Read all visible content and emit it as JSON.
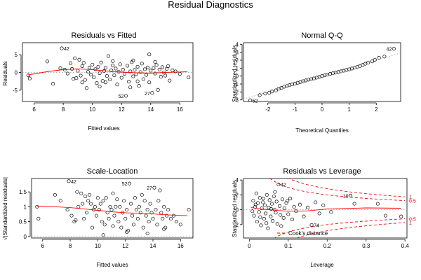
{
  "figure": {
    "title": "Residual Diagnostics"
  },
  "chart_data": [
    {
      "type": "scatter",
      "title": "Residuals vs Fitted",
      "xlabel": "Fitted values",
      "ylabel": "Residuals",
      "xlim": [
        5.2,
        16.9
      ],
      "ylim": [
        -8.2,
        8.4
      ],
      "xticks": [
        6,
        8,
        10,
        12,
        14,
        16
      ],
      "yticks": [
        -5,
        0,
        5
      ],
      "smooth": [
        [
          5.6,
          -0.7
        ],
        [
          7,
          0.3
        ],
        [
          8,
          0.8
        ],
        [
          9,
          1.0
        ],
        [
          10,
          0.8
        ],
        [
          11,
          0.4
        ],
        [
          12,
          0.1
        ],
        [
          13,
          -0.1
        ],
        [
          14,
          -0.2
        ],
        [
          15,
          0.0
        ],
        [
          16.5,
          0.2
        ]
      ],
      "annotations": [
        {
          "label": "42",
          "x": 7.9,
          "y": 6.8
        },
        {
          "label": "52",
          "x": 12.3,
          "y": -6.6
        },
        {
          "label": "27",
          "x": 14.1,
          "y": -5.8
        }
      ],
      "points": [
        [
          5.6,
          -0.8
        ],
        [
          5.7,
          -1.7
        ],
        [
          6.9,
          3.1
        ],
        [
          7.3,
          -3.2
        ],
        [
          7.8,
          1.2
        ],
        [
          7.9,
          6.8
        ],
        [
          8.1,
          0.8
        ],
        [
          8.3,
          -0.3
        ],
        [
          8.5,
          2.6
        ],
        [
          8.6,
          1.0
        ],
        [
          8.8,
          4.0
        ],
        [
          8.9,
          -1.6
        ],
        [
          9.0,
          0.5
        ],
        [
          9.1,
          3.6
        ],
        [
          9.2,
          -0.9
        ],
        [
          9.3,
          1.8
        ],
        [
          9.4,
          2.7
        ],
        [
          9.5,
          -2.1
        ],
        [
          9.6,
          -4.4
        ],
        [
          9.7,
          0.2
        ],
        [
          9.8,
          1.4
        ],
        [
          9.9,
          -0.6
        ],
        [
          10.0,
          2.2
        ],
        [
          10.1,
          -1.4
        ],
        [
          10.2,
          0.9
        ],
        [
          10.3,
          -3.0
        ],
        [
          10.4,
          1.6
        ],
        [
          10.5,
          -0.2
        ],
        [
          10.6,
          2.8
        ],
        [
          10.7,
          -2.4
        ],
        [
          10.8,
          0.4
        ],
        [
          10.9,
          1.3
        ],
        [
          11.0,
          -1.0
        ],
        [
          11.1,
          4.6
        ],
        [
          11.2,
          -2.0
        ],
        [
          11.3,
          0.6
        ],
        [
          11.4,
          2.0
        ],
        [
          11.5,
          -0.8
        ],
        [
          11.6,
          1.1
        ],
        [
          11.7,
          -3.4
        ],
        [
          11.8,
          0.2
        ],
        [
          11.9,
          2.3
        ],
        [
          12.0,
          -1.5
        ],
        [
          12.1,
          0.8
        ],
        [
          12.2,
          -0.4
        ],
        [
          12.3,
          -6.6
        ],
        [
          12.4,
          1.9
        ],
        [
          12.5,
          -2.6
        ],
        [
          12.6,
          0.3
        ],
        [
          12.7,
          2.9
        ],
        [
          12.8,
          -1.1
        ],
        [
          12.9,
          0.7
        ],
        [
          13.0,
          -0.5
        ],
        [
          13.1,
          1.6
        ],
        [
          13.2,
          -3.8
        ],
        [
          13.3,
          0.1
        ],
        [
          13.4,
          2.5
        ],
        [
          13.5,
          -1.9
        ],
        [
          13.6,
          0.9
        ],
        [
          13.7,
          -0.7
        ],
        [
          13.8,
          1.4
        ],
        [
          13.9,
          -2.8
        ],
        [
          14.0,
          0.5
        ],
        [
          14.1,
          -5.8
        ],
        [
          14.2,
          1.2
        ],
        [
          14.3,
          -0.3
        ],
        [
          14.4,
          2.1
        ],
        [
          14.5,
          -4.9
        ],
        [
          14.6,
          0.8
        ],
        [
          14.7,
          -1.2
        ],
        [
          14.8,
          1.5
        ],
        [
          14.9,
          0.0
        ],
        [
          15.0,
          -0.9
        ],
        [
          15.1,
          1.0
        ],
        [
          15.3,
          -2.3
        ],
        [
          15.5,
          0.6
        ],
        [
          15.7,
          0.3
        ],
        [
          16.0,
          -0.4
        ],
        [
          16.6,
          -1.4
        ],
        [
          11.4,
          3.2
        ],
        [
          12.8,
          3.4
        ],
        [
          13.9,
          5.1
        ],
        [
          10.5,
          -4.0
        ],
        [
          12.6,
          -4.2
        ],
        [
          9.3,
          -2.8
        ],
        [
          10.9,
          -2.8
        ],
        [
          13.1,
          -2.5
        ],
        [
          8.7,
          -1.8
        ],
        [
          14.3,
          3.0
        ],
        [
          15.2,
          1.8
        ]
      ]
    },
    {
      "type": "scatter",
      "title": "Normal Q-Q",
      "xlabel": "Theoretical Quantiles",
      "ylabel": "Standardized residuals",
      "xlim": [
        -2.9,
        2.9
      ],
      "ylim": [
        -3.2,
        4.2
      ],
      "xticks": [
        -2,
        -1,
        0,
        1,
        2
      ],
      "yticks": [
        -3,
        -2,
        -1,
        0,
        1,
        2,
        3,
        4
      ],
      "refline": [
        [
          -2.9,
          -2.9
        ],
        [
          2.9,
          2.9
        ]
      ],
      "annotations": [
        {
          "label": "52",
          "x": -2.65,
          "y": -3.05
        },
        {
          "label": "42",
          "x": 2.65,
          "y": 3.45
        }
      ],
      "points": [
        [
          -2.65,
          -3.05
        ],
        [
          -2.3,
          -2.4
        ],
        [
          -2.1,
          -2.2
        ],
        [
          -1.95,
          -2.1
        ],
        [
          -1.85,
          -1.95
        ],
        [
          -1.7,
          -1.8
        ],
        [
          -1.6,
          -1.6
        ],
        [
          -1.5,
          -1.5
        ],
        [
          -1.4,
          -1.35
        ],
        [
          -1.3,
          -1.25
        ],
        [
          -1.2,
          -1.15
        ],
        [
          -1.1,
          -1.05
        ],
        [
          -1.0,
          -0.95
        ],
        [
          -0.9,
          -0.85
        ],
        [
          -0.8,
          -0.75
        ],
        [
          -0.7,
          -0.65
        ],
        [
          -0.6,
          -0.55
        ],
        [
          -0.5,
          -0.45
        ],
        [
          -0.4,
          -0.38
        ],
        [
          -0.3,
          -0.3
        ],
        [
          -0.2,
          -0.2
        ],
        [
          -0.1,
          -0.1
        ],
        [
          0.0,
          0.0
        ],
        [
          0.1,
          0.1
        ],
        [
          0.2,
          0.18
        ],
        [
          0.3,
          0.27
        ],
        [
          0.4,
          0.35
        ],
        [
          0.5,
          0.44
        ],
        [
          0.6,
          0.52
        ],
        [
          0.7,
          0.6
        ],
        [
          0.8,
          0.68
        ],
        [
          0.9,
          0.76
        ],
        [
          1.0,
          0.85
        ],
        [
          1.1,
          0.95
        ],
        [
          1.2,
          1.05
        ],
        [
          1.3,
          1.15
        ],
        [
          1.4,
          1.28
        ],
        [
          1.5,
          1.4
        ],
        [
          1.6,
          1.55
        ],
        [
          1.7,
          1.7
        ],
        [
          1.85,
          1.85
        ],
        [
          1.95,
          2.05
        ],
        [
          2.1,
          2.3
        ],
        [
          2.3,
          2.45
        ],
        [
          2.65,
          3.45
        ]
      ]
    },
    {
      "type": "scatter",
      "title": "Scale-Location",
      "xlabel": "Fitted values",
      "ylabel": "√|Standardized residuals|",
      "xlim": [
        5.2,
        16.9
      ],
      "ylim": [
        -0.05,
        1.95
      ],
      "xticks": [
        6,
        8,
        10,
        12,
        14,
        16
      ],
      "yticks": [
        0.0,
        0.5,
        1.0,
        1.5
      ],
      "smooth": [
        [
          5.6,
          1.02
        ],
        [
          7,
          1.0
        ],
        [
          8,
          0.97
        ],
        [
          9,
          0.93
        ],
        [
          10,
          0.88
        ],
        [
          11,
          0.83
        ],
        [
          12,
          0.8
        ],
        [
          13,
          0.78
        ],
        [
          14,
          0.76
        ],
        [
          15,
          0.73
        ],
        [
          16.5,
          0.7
        ]
      ],
      "annotations": [
        {
          "label": "42",
          "x": 7.9,
          "y": 1.86
        },
        {
          "label": "52",
          "x": 12.3,
          "y": 1.78
        },
        {
          "label": "27",
          "x": 14.1,
          "y": 1.64
        }
      ],
      "points": [
        [
          5.6,
          1.0
        ],
        [
          5.7,
          0.6
        ],
        [
          6.9,
          1.4
        ],
        [
          7.3,
          1.2
        ],
        [
          7.8,
          0.9
        ],
        [
          7.9,
          1.86
        ],
        [
          8.1,
          0.7
        ],
        [
          8.3,
          0.5
        ],
        [
          8.5,
          1.5
        ],
        [
          8.6,
          1.0
        ],
        [
          8.8,
          1.45
        ],
        [
          8.9,
          1.1
        ],
        [
          9.0,
          0.6
        ],
        [
          9.1,
          1.35
        ],
        [
          9.2,
          0.8
        ],
        [
          9.3,
          1.2
        ],
        [
          9.4,
          1.4
        ],
        [
          9.5,
          1.1
        ],
        [
          9.6,
          0.3
        ],
        [
          9.7,
          0.9
        ],
        [
          9.8,
          1.0
        ],
        [
          9.9,
          0.7
        ],
        [
          10.0,
          1.3
        ],
        [
          10.1,
          0.9
        ],
        [
          10.2,
          1.1
        ],
        [
          10.3,
          0.5
        ],
        [
          10.4,
          1.2
        ],
        [
          10.5,
          0.4
        ],
        [
          10.6,
          1.3
        ],
        [
          10.7,
          0.8
        ],
        [
          10.8,
          0.6
        ],
        [
          10.9,
          1.0
        ],
        [
          11.0,
          0.9
        ],
        [
          11.1,
          1.45
        ],
        [
          11.2,
          0.7
        ],
        [
          11.3,
          1.0
        ],
        [
          11.4,
          1.25
        ],
        [
          11.5,
          0.5
        ],
        [
          11.6,
          1.0
        ],
        [
          11.7,
          0.3
        ],
        [
          11.8,
          0.8
        ],
        [
          11.9,
          1.2
        ],
        [
          12.0,
          0.6
        ],
        [
          12.1,
          0.9
        ],
        [
          12.2,
          0.2
        ],
        [
          12.3,
          1.78
        ],
        [
          12.4,
          1.1
        ],
        [
          12.5,
          0.7
        ],
        [
          12.6,
          0.4
        ],
        [
          12.7,
          1.3
        ],
        [
          12.8,
          0.9
        ],
        [
          12.9,
          0.6
        ],
        [
          13.0,
          1.0
        ],
        [
          13.1,
          0.8
        ],
        [
          13.2,
          1.4
        ],
        [
          13.3,
          0.3
        ],
        [
          13.4,
          1.2
        ],
        [
          13.5,
          0.7
        ],
        [
          13.6,
          0.9
        ],
        [
          13.7,
          0.5
        ],
        [
          13.8,
          1.1
        ],
        [
          13.9,
          0.8
        ],
        [
          14.0,
          0.6
        ],
        [
          14.1,
          1.64
        ],
        [
          14.2,
          0.9
        ],
        [
          14.3,
          0.4
        ],
        [
          14.4,
          1.2
        ],
        [
          14.5,
          1.55
        ],
        [
          14.6,
          0.8
        ],
        [
          14.7,
          0.6
        ],
        [
          14.8,
          1.0
        ],
        [
          14.9,
          0.3
        ],
        [
          15.0,
          0.7
        ],
        [
          15.1,
          0.9
        ],
        [
          15.3,
          0.6
        ],
        [
          15.5,
          0.7
        ],
        [
          15.7,
          0.5
        ],
        [
          16.0,
          0.4
        ],
        [
          16.6,
          0.9
        ],
        [
          10.4,
          0.05
        ],
        [
          12.1,
          0.15
        ],
        [
          13.6,
          0.1
        ],
        [
          8.4,
          0.55
        ],
        [
          11.1,
          0.35
        ],
        [
          14.8,
          0.25
        ]
      ]
    },
    {
      "type": "scatter",
      "title": "Residuals vs Leverage",
      "xlabel": "Leverage",
      "ylabel": "Standardized residuals",
      "xlim": [
        -0.015,
        0.405
      ],
      "ylim": [
        -3.8,
        4.2
      ],
      "xticks": [
        0.0,
        0.1,
        0.2,
        0.3,
        0.4
      ],
      "yticks": [
        -2,
        0,
        2,
        4
      ],
      "smooth": [
        [
          0.005,
          0.3
        ],
        [
          0.02,
          0.15
        ],
        [
          0.05,
          0.0
        ],
        [
          0.1,
          -0.2
        ],
        [
          0.15,
          -0.15
        ],
        [
          0.2,
          0.1
        ],
        [
          0.3,
          0.25
        ],
        [
          0.39,
          0.2
        ]
      ],
      "cook_levels": [
        0.5,
        1
      ],
      "legend": "Cook's distance",
      "annotations": [
        {
          "label": "42",
          "x": 0.075,
          "y": 3.4
        },
        {
          "label": "10",
          "x": 0.26,
          "y": 1.9
        },
        {
          "label": "74",
          "x": 0.16,
          "y": -2.05
        }
      ],
      "points": [
        [
          0.01,
          1.2
        ],
        [
          0.012,
          -0.8
        ],
        [
          0.015,
          0.4
        ],
        [
          0.018,
          2.2
        ],
        [
          0.02,
          -1.6
        ],
        [
          0.022,
          0.9
        ],
        [
          0.025,
          -0.3
        ],
        [
          0.027,
          1.6
        ],
        [
          0.03,
          -2.1
        ],
        [
          0.032,
          0.2
        ],
        [
          0.035,
          1.0
        ],
        [
          0.038,
          -1.2
        ],
        [
          0.04,
          0.6
        ],
        [
          0.042,
          -0.5
        ],
        [
          0.045,
          2.0
        ],
        [
          0.048,
          -2.5
        ],
        [
          0.05,
          0.3
        ],
        [
          0.052,
          1.3
        ],
        [
          0.055,
          -0.9
        ],
        [
          0.058,
          0.8
        ],
        [
          0.06,
          -1.5
        ],
        [
          0.063,
          1.8
        ],
        [
          0.065,
          0.0
        ],
        [
          0.068,
          -0.4
        ],
        [
          0.07,
          1.1
        ],
        [
          0.072,
          -1.9
        ],
        [
          0.075,
          3.4
        ],
        [
          0.078,
          0.5
        ],
        [
          0.08,
          -0.7
        ],
        [
          0.085,
          1.4
        ],
        [
          0.088,
          -1.1
        ],
        [
          0.09,
          0.2
        ],
        [
          0.095,
          0.9
        ],
        [
          0.1,
          -0.6
        ],
        [
          0.105,
          1.5
        ],
        [
          0.11,
          -1.3
        ],
        [
          0.115,
          0.4
        ],
        [
          0.12,
          -0.2
        ],
        [
          0.13,
          0.7
        ],
        [
          0.14,
          -0.9
        ],
        [
          0.15,
          0.3
        ],
        [
          0.16,
          -2.05
        ],
        [
          0.17,
          1.0
        ],
        [
          0.18,
          -0.5
        ],
        [
          0.19,
          0.6
        ],
        [
          0.21,
          -0.3
        ],
        [
          0.26,
          1.9
        ],
        [
          0.27,
          0.8
        ],
        [
          0.33,
          0.8
        ],
        [
          0.35,
          -0.8
        ],
        [
          0.39,
          -0.9
        ],
        [
          0.008,
          -0.2
        ],
        [
          0.016,
          0.7
        ],
        [
          0.028,
          -1.0
        ],
        [
          0.036,
          1.5
        ],
        [
          0.044,
          -1.8
        ],
        [
          0.056,
          0.1
        ],
        [
          0.066,
          2.4
        ],
        [
          0.082,
          -2.2
        ],
        [
          0.098,
          1.2
        ]
      ]
    }
  ]
}
